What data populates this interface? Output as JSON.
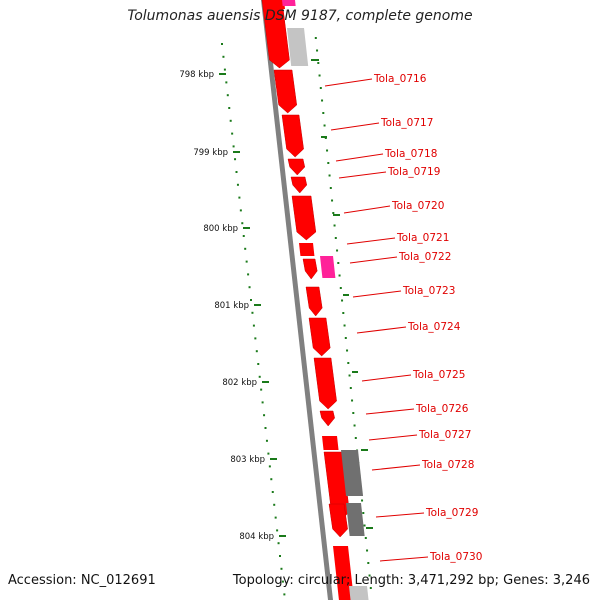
{
  "title": "Tolumonas auensis DSM 9187, complete genome",
  "footer": {
    "accession": "Accession: NC_012691",
    "summary": "Topology: circular; Length: 3,471,292 bp; Genes: 3,246"
  },
  "colors": {
    "backbone": "#808080",
    "gene_red": "#ff0000",
    "gene_magenta": "#ff2299",
    "gene_gray": "#707070",
    "gene_lightgray": "#c4c4c4",
    "label": "#e00000",
    "ticks": "#1a7a1a"
  },
  "scale_labels": [
    "798 kbp",
    "799 kbp",
    "800 kbp",
    "801 kbp",
    "802 kbp",
    "803 kbp",
    "804 kbp"
  ],
  "gene_labels": [
    "Tola_0716",
    "Tola_0717",
    "Tola_0718",
    "Tola_0719",
    "Tola_0720",
    "Tola_0721",
    "Tola_0722",
    "Tola_0723",
    "Tola_0724",
    "Tola_0725",
    "Tola_0726",
    "Tola_0727",
    "Tola_0728",
    "Tola_0729",
    "Tola_0730"
  ],
  "features": [
    {
      "track": "inner",
      "color": "red"
    },
    {
      "track": "inner",
      "color": "red"
    },
    {
      "track": "inner",
      "color": "red"
    },
    {
      "track": "inner",
      "color": "red"
    },
    {
      "track": "inner",
      "color": "red"
    },
    {
      "track": "inner",
      "color": "red"
    },
    {
      "track": "inner",
      "color": "red"
    },
    {
      "track": "inner",
      "color": "red"
    },
    {
      "track": "inner",
      "color": "red"
    },
    {
      "track": "inner",
      "color": "red"
    },
    {
      "track": "inner",
      "color": "red"
    },
    {
      "track": "inner",
      "color": "red"
    },
    {
      "track": "inner",
      "color": "red"
    },
    {
      "track": "inner",
      "color": "red"
    },
    {
      "track": "inner",
      "color": "red"
    },
    {
      "track": "inner",
      "color": "red"
    },
    {
      "track": "inner",
      "color": "red"
    },
    {
      "track": "inner",
      "color": "red"
    },
    {
      "track": "outer",
      "color": "magenta"
    },
    {
      "track": "outer",
      "color": "lightgray"
    },
    {
      "track": "outer",
      "color": "magenta"
    },
    {
      "track": "outer",
      "color": "gray"
    },
    {
      "track": "outer",
      "color": "gray"
    },
    {
      "track": "outer",
      "color": "lightgray"
    }
  ]
}
